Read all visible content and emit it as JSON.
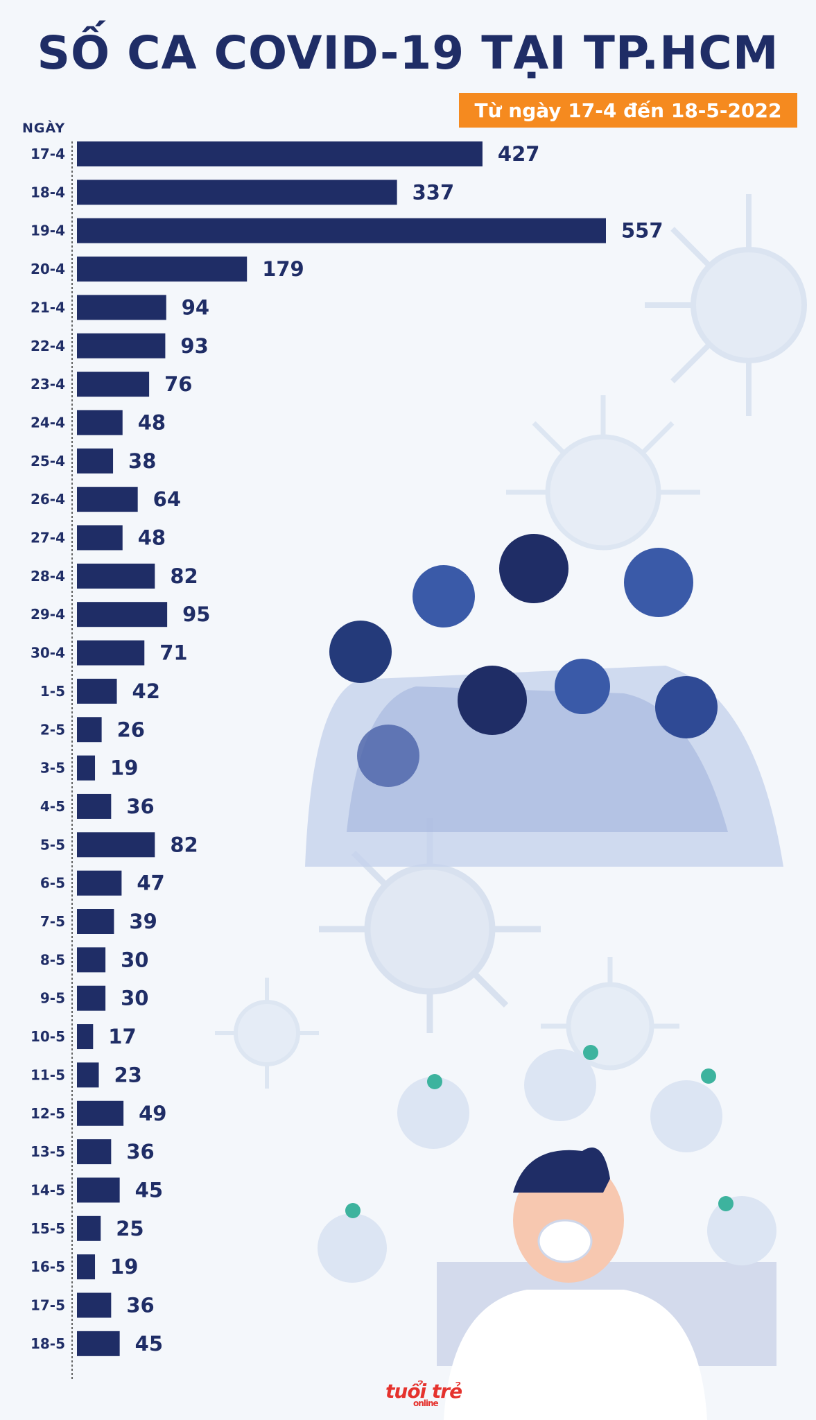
{
  "title": "SỐ CA COVID-19 TẠI TP.HCM",
  "subtitle": "Từ ngày 17-4 đến 18-5-2022",
  "y_axis_label": "NGÀY",
  "logo": {
    "main": "tuổi trẻ",
    "sub": "online"
  },
  "colors": {
    "bar": "#1f2d66",
    "accent": "#f58a1f",
    "background": "#f4f7fb"
  },
  "chart_data": {
    "type": "bar",
    "orientation": "horizontal",
    "title": "SỐ CA COVID-19 TẠI TP.HCM",
    "subtitle": "Từ ngày 17-4 đến 18-5-2022",
    "ylabel": "NGÀY",
    "xlim": [
      0,
      600
    ],
    "grid": false,
    "categories": [
      "17-4",
      "18-4",
      "19-4",
      "20-4",
      "21-4",
      "22-4",
      "23-4",
      "24-4",
      "25-4",
      "26-4",
      "27-4",
      "28-4",
      "29-4",
      "30-4",
      "1-5",
      "2-5",
      "3-5",
      "4-5",
      "5-5",
      "6-5",
      "7-5",
      "8-5",
      "9-5",
      "10-5",
      "11-5",
      "12-5",
      "13-5",
      "14-5",
      "15-5",
      "16-5",
      "17-5",
      "18-5"
    ],
    "values": [
      427,
      337,
      557,
      179,
      94,
      93,
      76,
      48,
      38,
      64,
      48,
      82,
      95,
      71,
      42,
      26,
      19,
      36,
      82,
      47,
      39,
      30,
      30,
      17,
      23,
      49,
      36,
      45,
      25,
      19,
      36,
      45
    ]
  }
}
